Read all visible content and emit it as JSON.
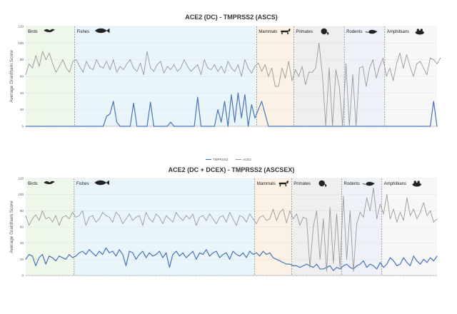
{
  "chart_data": [
    {
      "type": "line",
      "title": "ACE2 (DC) - TMPRSS2 (ASCS)",
      "ylabel": "Average Grantham Score",
      "ylim": [
        0,
        120
      ],
      "yticks": [
        0,
        20,
        40,
        60,
        80,
        100,
        120
      ],
      "grid": true,
      "legend": "bottom",
      "legend_labels": [
        "TMPRSS2",
        "ACE2"
      ],
      "groups": [
        {
          "name": "Birds",
          "icon": "bird-icon",
          "color": "#eef8ea",
          "count": 15
        },
        {
          "name": "Fishes",
          "icon": "fish-icon",
          "color": "#e8f5fb",
          "count": 54
        },
        {
          "name": "Mammals",
          "icon": "goat-icon",
          "color": "#fbf1e4",
          "count": 11
        },
        {
          "name": "Primates",
          "icon": "monkey-icon",
          "color": "#efefef",
          "count": 15
        },
        {
          "name": "Rodents",
          "icon": "rodent-icon",
          "color": "#eef2f8",
          "count": 12
        },
        {
          "name": "Amphibians",
          "icon": "frog-icon",
          "color": "#f7f7f7",
          "count": 12
        }
      ],
      "series": [
        {
          "name": "TMPRSS2",
          "color": "#4a74b8",
          "values": [
            0,
            0,
            0,
            0,
            0,
            0,
            0,
            0,
            0,
            0,
            0,
            0,
            0,
            0,
            0,
            0,
            0,
            0,
            0,
            0,
            0,
            0,
            0,
            0,
            12,
            15,
            30,
            5,
            0,
            0,
            0,
            0,
            28,
            0,
            0,
            0,
            0,
            29,
            0,
            0,
            0,
            0,
            0,
            5,
            0,
            0,
            0,
            0,
            0,
            0,
            0,
            35,
            0,
            0,
            0,
            0,
            0,
            20,
            5,
            30,
            0,
            38,
            5,
            40,
            10,
            38,
            0,
            26,
            10,
            20,
            30,
            15,
            0,
            0,
            0,
            0,
            0,
            0,
            0,
            0,
            0,
            0,
            0,
            0,
            0,
            0,
            0,
            0,
            0,
            0,
            0,
            0,
            0,
            0,
            0,
            0,
            0,
            0,
            0,
            0,
            0,
            0,
            0,
            0,
            0,
            0,
            0,
            0,
            0,
            0,
            0,
            0,
            0,
            0,
            0,
            0,
            0,
            0,
            0,
            0,
            0,
            30,
            0
          ]
        },
        {
          "name": "ACE2",
          "color": "#9a9a9a",
          "values": [
            62,
            75,
            70,
            85,
            72,
            90,
            80,
            88,
            75,
            65,
            72,
            80,
            70,
            65,
            78,
            80,
            72,
            65,
            78,
            70,
            68,
            80,
            72,
            70,
            78,
            68,
            80,
            65,
            72,
            68,
            75,
            80,
            70,
            66,
            76,
            62,
            90,
            70,
            66,
            74,
            78,
            64,
            72,
            68,
            74,
            66,
            70,
            80,
            72,
            66,
            70,
            74,
            62,
            80,
            70,
            68,
            74,
            66,
            72,
            64,
            78,
            70,
            66,
            74,
            60,
            80,
            70,
            64,
            72,
            76,
            66,
            74,
            60,
            70,
            48,
            48,
            70,
            58,
            78,
            55,
            68,
            60,
            72,
            50,
            65,
            65,
            70,
            100,
            62,
            0,
            70,
            0,
            68,
            48,
            0,
            75,
            0,
            62,
            0,
            70,
            72,
            48,
            70,
            80,
            58,
            72,
            82,
            60,
            70,
            55,
            75,
            88,
            70,
            86,
            72,
            60,
            75,
            78,
            70,
            62,
            82,
            80,
            75,
            82
          ]
        }
      ]
    },
    {
      "type": "line",
      "title": "ACE2 (DC + DCEX) - TMPRSS2 (ASCSEX)",
      "ylabel": "Average Grantham Score",
      "ylim": [
        0,
        120
      ],
      "yticks": [
        0,
        20,
        40,
        60,
        80,
        100,
        120
      ],
      "grid": true,
      "groups": [
        {
          "name": "Birds",
          "icon": "bird-icon",
          "color": "#eef8ea",
          "count": 15
        },
        {
          "name": "Fishes",
          "icon": "fish-icon",
          "color": "#e8f5fb",
          "count": 54
        },
        {
          "name": "Mammals",
          "icon": "goat-icon",
          "color": "#fbf1e4",
          "count": 11
        },
        {
          "name": "Primates",
          "icon": "monkey-icon",
          "color": "#efefef",
          "count": 15
        },
        {
          "name": "Rodents",
          "icon": "rodent-icon",
          "color": "#eef2f8",
          "count": 12
        },
        {
          "name": "Amphibians",
          "icon": "frog-icon",
          "color": "#f7f7f7",
          "count": 12
        }
      ],
      "series": [
        {
          "name": "TMPRSS2",
          "color": "#4a74b8",
          "values": [
            20,
            26,
            24,
            12,
            22,
            26,
            14,
            24,
            22,
            18,
            24,
            22,
            20,
            26,
            22,
            24,
            28,
            30,
            26,
            32,
            28,
            24,
            30,
            26,
            34,
            28,
            30,
            24,
            32,
            26,
            12,
            30,
            28,
            20,
            26,
            30,
            22,
            28,
            24,
            26,
            30,
            22,
            28,
            10,
            26,
            30,
            24,
            28,
            22,
            26,
            30,
            20,
            28,
            26,
            32,
            24,
            28,
            30,
            22,
            26,
            28,
            20,
            30,
            26,
            24,
            28,
            22,
            30,
            26,
            28,
            24,
            30,
            26,
            28,
            22,
            20,
            18,
            16,
            14,
            14,
            12,
            12,
            10,
            12,
            14,
            12,
            10,
            14,
            8,
            8,
            10,
            12,
            6,
            10,
            8,
            12,
            14,
            10,
            8,
            12,
            14,
            18,
            10,
            14,
            12,
            8,
            16,
            10,
            14,
            22,
            18,
            12,
            14,
            22,
            16,
            12,
            24,
            18,
            14,
            20,
            16,
            22,
            18,
            24
          ]
        },
        {
          "name": "ACE2",
          "color": "#9a9a9a",
          "values": [
            74,
            62,
            70,
            75,
            68,
            80,
            70,
            72,
            66,
            74,
            62,
            72,
            74,
            70,
            78,
            72,
            74,
            80,
            62,
            72,
            74,
            66,
            70,
            78,
            74,
            72,
            66,
            78,
            74,
            64,
            70,
            76,
            68,
            72,
            74,
            62,
            78,
            70,
            66,
            76,
            72,
            64,
            74,
            70,
            66,
            78,
            72,
            68,
            74,
            70,
            76,
            62,
            72,
            74,
            68,
            76,
            70,
            64,
            72,
            74,
            66,
            78,
            70,
            62,
            74,
            72,
            66,
            76,
            70,
            64,
            72,
            74,
            68,
            70,
            82,
            68,
            78,
            82,
            65,
            80,
            70,
            76,
            62,
            72,
            70,
            10,
            60,
            80,
            20,
            70,
            5,
            84,
            15,
            76,
            10,
            98,
            20,
            80,
            5,
            64,
            78,
            72,
            96,
            80,
            108,
            70,
            88,
            76,
            100,
            70,
            82,
            66,
            78,
            68,
            96,
            74,
            82,
            70,
            78,
            90,
            74,
            80,
            66,
            70
          ]
        }
      ]
    }
  ]
}
